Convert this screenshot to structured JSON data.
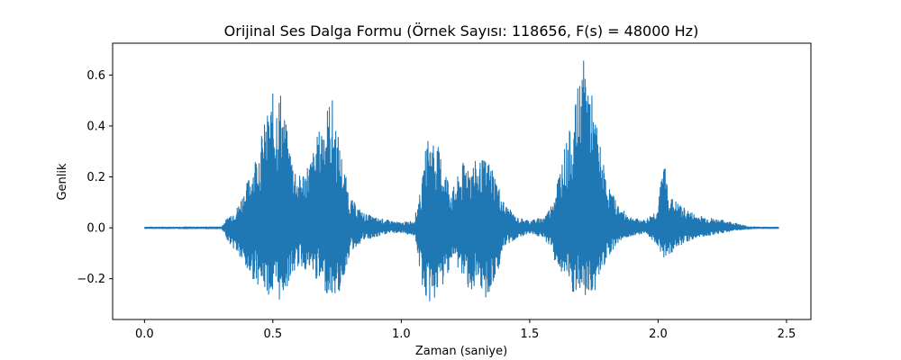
{
  "chart_data": {
    "type": "line",
    "title": "Orijinal Ses Dalga Formu (Örnek Sayısı: 118656, F(s) = 48000 Hz)",
    "xlabel": "Zaman (saniye)",
    "ylabel": "Genlik",
    "xlim": [
      -0.124,
      2.595
    ],
    "ylim": [
      -0.36,
      0.725
    ],
    "xticks": [
      0.0,
      0.5,
      1.0,
      1.5,
      2.0,
      2.5
    ],
    "xtick_labels": [
      "0.0",
      "0.5",
      "1.0",
      "1.5",
      "2.0",
      "2.5"
    ],
    "yticks": [
      -0.2,
      0.0,
      0.2,
      0.4,
      0.6
    ],
    "ytick_labels": [
      "−0.2",
      "0.0",
      "0.2",
      "0.4",
      "0.6"
    ],
    "grid": false,
    "series": [
      {
        "color": "#1f77b4",
        "envelope": {
          "x": [
            0.0,
            0.3,
            0.33,
            0.36,
            0.4,
            0.45,
            0.5,
            0.53,
            0.56,
            0.6,
            0.65,
            0.7,
            0.73,
            0.76,
            0.8,
            0.85,
            0.9,
            0.95,
            1.0,
            1.05,
            1.08,
            1.1,
            1.13,
            1.16,
            1.2,
            1.25,
            1.28,
            1.32,
            1.35,
            1.4,
            1.45,
            1.5,
            1.55,
            1.58,
            1.6,
            1.63,
            1.67,
            1.7,
            1.72,
            1.75,
            1.8,
            1.85,
            1.9,
            1.95,
            2.0,
            2.02,
            2.05,
            2.1,
            2.15,
            2.2,
            2.25,
            2.3,
            2.35,
            2.4,
            2.47
          ],
          "max": [
            0.003,
            0.004,
            0.05,
            0.08,
            0.18,
            0.35,
            0.53,
            0.55,
            0.35,
            0.2,
            0.28,
            0.46,
            0.52,
            0.33,
            0.12,
            0.06,
            0.04,
            0.03,
            0.02,
            0.03,
            0.17,
            0.36,
            0.36,
            0.27,
            0.15,
            0.28,
            0.26,
            0.27,
            0.26,
            0.1,
            0.04,
            0.03,
            0.04,
            0.08,
            0.16,
            0.3,
            0.43,
            0.64,
            0.68,
            0.47,
            0.18,
            0.08,
            0.04,
            0.03,
            0.08,
            0.28,
            0.12,
            0.08,
            0.05,
            0.04,
            0.03,
            0.02,
            0.005,
            0.003,
            0.003
          ],
          "min": [
            -0.003,
            -0.004,
            -0.06,
            -0.1,
            -0.18,
            -0.23,
            -0.28,
            -0.29,
            -0.22,
            -0.15,
            -0.18,
            -0.25,
            -0.27,
            -0.26,
            -0.1,
            -0.05,
            -0.04,
            -0.02,
            -0.02,
            -0.03,
            -0.22,
            -0.31,
            -0.28,
            -0.24,
            -0.12,
            -0.22,
            -0.26,
            -0.28,
            -0.27,
            -0.08,
            -0.04,
            -0.02,
            -0.04,
            -0.07,
            -0.14,
            -0.19,
            -0.27,
            -0.27,
            -0.28,
            -0.26,
            -0.12,
            -0.05,
            -0.03,
            -0.02,
            -0.07,
            -0.12,
            -0.1,
            -0.06,
            -0.04,
            -0.03,
            -0.02,
            -0.01,
            -0.005,
            -0.003,
            -0.003
          ]
        }
      }
    ]
  }
}
